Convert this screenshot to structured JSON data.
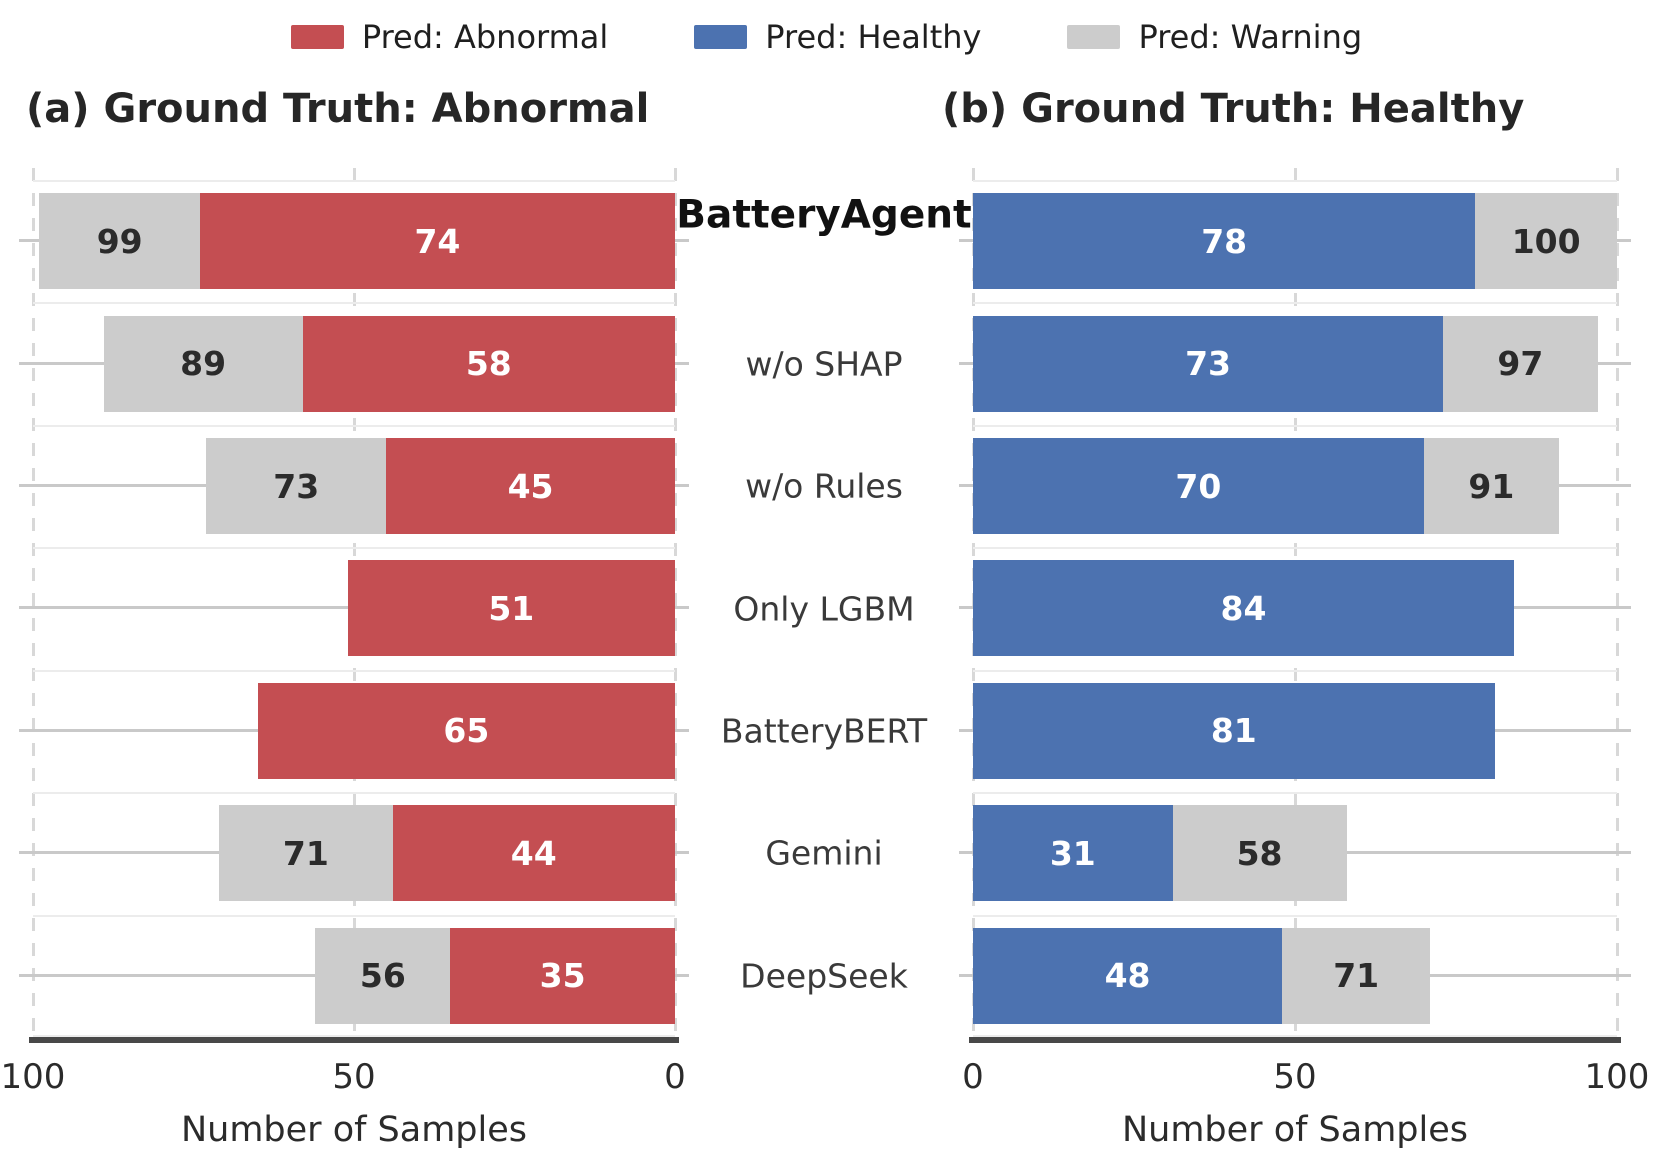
{
  "legend": {
    "items": [
      {
        "label": "Pred: Abnormal",
        "color": "#c44e52"
      },
      {
        "label": "Pred: Healthy",
        "color": "#4c72b0"
      },
      {
        "label": "Pred: Warning",
        "color": "#cccccc"
      }
    ]
  },
  "chart_data": {
    "type": "bar",
    "orientation": "horizontal",
    "stacked": true,
    "grid": true,
    "legend_position": "top",
    "categories": [
      "BatteryAgent",
      "w/o SHAP",
      "w/o Rules",
      "Only LGBM",
      "BatteryBERT",
      "Gemini",
      "DeepSeek"
    ],
    "panels": [
      {
        "id": "a",
        "title": "(a) Ground Truth: Abnormal",
        "xlabel": "Number of Samples",
        "direction": "rtl",
        "xlim": [
          0,
          100
        ],
        "xticks": [
          {
            "label": "100",
            "pos": 0
          },
          {
            "label": "50",
            "pos": 50
          },
          {
            "label": "0",
            "pos": 100
          }
        ],
        "series": [
          {
            "name": "Pred: Abnormal",
            "color": "#c44e52",
            "values": [
              74,
              58,
              45,
              51,
              65,
              44,
              35
            ]
          },
          {
            "name": "Pred: Warning",
            "color": "#cccccc",
            "values": [
              25,
              31,
              28,
              0,
              0,
              27,
              21
            ]
          }
        ],
        "stack_total_labels": [
          99,
          89,
          73,
          51,
          65,
          71,
          56
        ]
      },
      {
        "id": "b",
        "title": "(b) Ground Truth: Healthy",
        "xlabel": "Number of Samples",
        "direction": "ltr",
        "xlim": [
          0,
          100
        ],
        "xticks": [
          {
            "label": "0",
            "pos": 0
          },
          {
            "label": "50",
            "pos": 50
          },
          {
            "label": "100",
            "pos": 100
          }
        ],
        "series": [
          {
            "name": "Pred: Healthy",
            "color": "#4c72b0",
            "values": [
              78,
              73,
              70,
              84,
              81,
              31,
              48
            ]
          },
          {
            "name": "Pred: Warning",
            "color": "#cccccc",
            "values": [
              22,
              24,
              21,
              0,
              0,
              27,
              23
            ]
          }
        ],
        "stack_total_labels": [
          100,
          97,
          91,
          84,
          81,
          58,
          71
        ]
      }
    ]
  }
}
